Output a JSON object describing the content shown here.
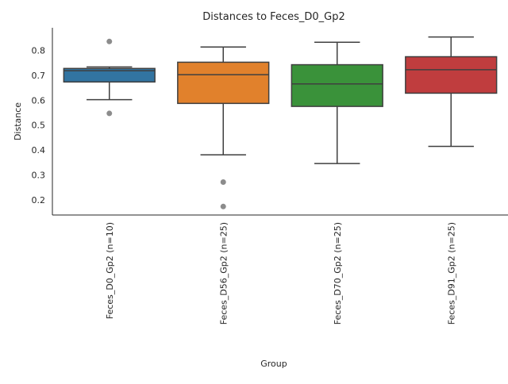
{
  "chart_data": {
    "type": "box",
    "title": "Distances to Feces_D0_Gp2",
    "xlabel": "Group",
    "ylabel": "Distance",
    "ylim": [
      0.14,
      0.89
    ],
    "yticks": [
      0.2,
      0.3,
      0.4,
      0.5,
      0.6,
      0.7,
      0.8
    ],
    "ytick_labels": [
      "0.2",
      "0.3",
      "0.4",
      "0.5",
      "0.6",
      "0.7",
      "0.8"
    ],
    "grid": false,
    "categories": [
      "Feces_D0_Gp2 (n=10)",
      "Feces_D56_Gp2 (n=25)",
      "Feces_D70_Gp2 (n=25)",
      "Feces_D91_Gp2 (n=25)"
    ],
    "boxes": [
      {
        "whisker_low": 0.602,
        "q1": 0.673,
        "median": 0.718,
        "q3": 0.727,
        "whisker_high": 0.733,
        "outliers": [
          0.835,
          0.547
        ],
        "color": "#3274a1"
      },
      {
        "whisker_low": 0.381,
        "q1": 0.587,
        "median": 0.702,
        "q3": 0.752,
        "whisker_high": 0.813,
        "outliers": [
          0.272,
          0.174
        ],
        "color": "#e1812c"
      },
      {
        "whisker_low": 0.346,
        "q1": 0.575,
        "median": 0.665,
        "q3": 0.742,
        "whisker_high": 0.832,
        "outliers": [],
        "color": "#3a923a"
      },
      {
        "whisker_low": 0.415,
        "q1": 0.628,
        "median": 0.722,
        "q3": 0.774,
        "whisker_high": 0.853,
        "outliers": [],
        "color": "#c03d3e"
      }
    ],
    "line_color": "#3f3f3f",
    "outlier_color": "#8c8c8c",
    "axis_color": "#262626"
  }
}
